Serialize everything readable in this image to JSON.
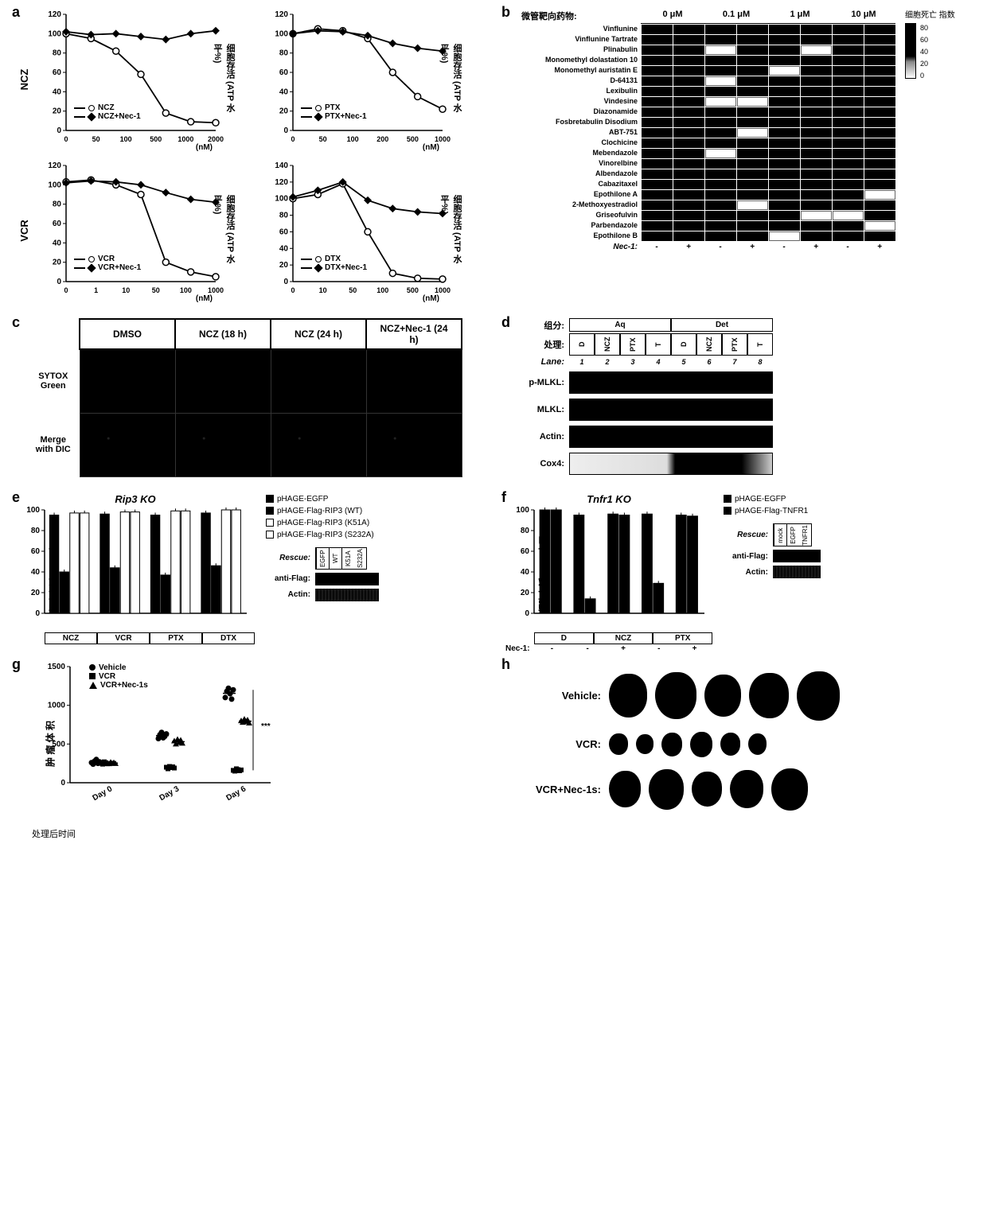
{
  "panel_a": {
    "ylabel": "细胞存活 (ATP 水平%)",
    "xunit": "(nM)",
    "ylim": [
      0,
      120
    ],
    "ytick_step": 20,
    "charts": [
      {
        "drug": "NCZ",
        "row_label": "NCZ",
        "xtick_labels": [
          "0",
          "50",
          "100",
          "500",
          "1000",
          "2000"
        ],
        "series": [
          {
            "name": "NCZ",
            "marker": "open",
            "y": [
              100,
              95,
              82,
              58,
              18,
              9,
              8
            ]
          },
          {
            "name": "NCZ+Nec-1",
            "marker": "closed",
            "y": [
              102,
              99,
              100,
              97,
              94,
              100,
              103
            ]
          }
        ]
      },
      {
        "drug": "PTX",
        "row_label": "PTX",
        "xtick_labels": [
          "0",
          "50",
          "100",
          "200",
          "500",
          "1000"
        ],
        "series": [
          {
            "name": "PTX",
            "marker": "open",
            "y": [
              100,
              105,
              103,
              95,
              60,
              35,
              22
            ]
          },
          {
            "name": "PTX+Nec-1",
            "marker": "closed",
            "y": [
              100,
              103,
              102,
              98,
              90,
              85,
              82
            ]
          }
        ]
      },
      {
        "drug": "VCR",
        "row_label": "VCR",
        "xtick_labels": [
          "0",
          "1",
          "10",
          "50",
          "100",
          "1000"
        ],
        "series": [
          {
            "name": "VCR",
            "marker": "open",
            "y": [
              103,
              105,
              100,
              90,
              20,
              10,
              5
            ]
          },
          {
            "name": "VCR+Nec-1",
            "marker": "closed",
            "y": [
              102,
              104,
              103,
              100,
              92,
              85,
              82
            ]
          }
        ]
      },
      {
        "drug": "DTX",
        "row_label": "DTX",
        "xtick_labels": [
          "0",
          "10",
          "50",
          "100",
          "500",
          "1000"
        ],
        "ylim": [
          0,
          140
        ],
        "series": [
          {
            "name": "DTX",
            "marker": "open",
            "y": [
              100,
              105,
              118,
              60,
              10,
              4,
              3
            ]
          },
          {
            "name": "DTX+Nec-1",
            "marker": "closed",
            "y": [
              102,
              110,
              120,
              98,
              88,
              84,
              82
            ]
          }
        ]
      }
    ]
  },
  "panel_b": {
    "title": "微管靶向药物:",
    "legend_title": "细胞死亡\n指数",
    "concentrations": [
      "0 μM",
      "0.1 μM",
      "1 μM",
      "10 μM"
    ],
    "nec_row_label": "Nec-1:",
    "nec_values": [
      "-",
      "+",
      "-",
      "+",
      "-",
      "+",
      "-",
      "+"
    ],
    "legend_ticks": [
      "80",
      "60",
      "40",
      "20",
      "0"
    ],
    "drugs": [
      "Vinflunine",
      "Vinflunine Tartrate",
      "Plinabulin",
      "Monomethyl dolastation 10",
      "Monomethyl auristatin E",
      "D-64131",
      "Lexibulin",
      "Vindesine",
      "Diazonamide",
      "Fosbretabulin Disodium",
      "ABT-751",
      "Clochicine",
      "Mebendazole",
      "Vinorelbine",
      "Albendazole",
      "Cabazitaxel",
      "Epothilone A",
      "2-Methoxyestradiol",
      "Griseofulvin",
      "Parbendazole",
      "Epothilone B"
    ],
    "cells": [
      [
        "hi",
        "hi",
        "hi",
        "hi",
        "hi",
        "hi",
        "hi",
        "hi"
      ],
      [
        "hi",
        "hi",
        "hi",
        "hi",
        "hi",
        "hi",
        "hi",
        "hi"
      ],
      [
        "hi",
        "hi",
        "lo",
        "hi",
        "hi",
        "lo",
        "hi",
        "hi"
      ],
      [
        "hi",
        "hi",
        "hi",
        "hi",
        "hi",
        "hi",
        "hi",
        "hi"
      ],
      [
        "hi",
        "hi",
        "hi",
        "hi",
        "lo",
        "hi",
        "hi",
        "hi"
      ],
      [
        "hi",
        "hi",
        "lo",
        "hi",
        "hi",
        "hi",
        "hi",
        "hi"
      ],
      [
        "hi",
        "hi",
        "hi",
        "hi",
        "hi",
        "hi",
        "hi",
        "hi"
      ],
      [
        "hi",
        "hi",
        "lo",
        "lo",
        "hi",
        "hi",
        "hi",
        "hi"
      ],
      [
        "hi",
        "hi",
        "hi",
        "hi",
        "hi",
        "hi",
        "hi",
        "hi"
      ],
      [
        "hi",
        "hi",
        "hi",
        "hi",
        "hi",
        "hi",
        "hi",
        "hi"
      ],
      [
        "hi",
        "hi",
        "hi",
        "lo",
        "hi",
        "hi",
        "hi",
        "hi"
      ],
      [
        "hi",
        "hi",
        "hi",
        "hi",
        "hi",
        "hi",
        "hi",
        "hi"
      ],
      [
        "hi",
        "hi",
        "lo",
        "hi",
        "hi",
        "hi",
        "hi",
        "hi"
      ],
      [
        "hi",
        "hi",
        "hi",
        "hi",
        "hi",
        "hi",
        "hi",
        "hi"
      ],
      [
        "hi",
        "hi",
        "hi",
        "hi",
        "hi",
        "hi",
        "hi",
        "hi"
      ],
      [
        "hi",
        "hi",
        "hi",
        "hi",
        "hi",
        "hi",
        "hi",
        "hi"
      ],
      [
        "hi",
        "hi",
        "hi",
        "hi",
        "hi",
        "hi",
        "hi",
        "lo"
      ],
      [
        "hi",
        "hi",
        "hi",
        "lo",
        "hi",
        "hi",
        "hi",
        "hi"
      ],
      [
        "hi",
        "hi",
        "hi",
        "hi",
        "hi",
        "lo",
        "lo",
        "hi"
      ],
      [
        "hi",
        "hi",
        "hi",
        "hi",
        "hi",
        "hi",
        "hi",
        "lo"
      ],
      [
        "hi",
        "hi",
        "hi",
        "hi",
        "lo",
        "hi",
        "hi",
        "hi"
      ]
    ]
  },
  "panel_c": {
    "conditions": [
      "DMSO",
      "NCZ (18 h)",
      "NCZ (24 h)",
      "NCZ+Nec-1 (24 h)"
    ],
    "row_labels": [
      "SYTOX\nGreen",
      "Merge\nwith DIC"
    ]
  },
  "panel_d": {
    "fraction_label": "组分:",
    "treatment_label": "处理:",
    "lane_label": "Lane:",
    "fractions": [
      "Aq",
      "Det"
    ],
    "treatments": [
      "D",
      "NCZ",
      "PTX",
      "T",
      "D",
      "NCZ",
      "PTX",
      "T"
    ],
    "lanes": [
      "1",
      "2",
      "3",
      "4",
      "5",
      "6",
      "7",
      "8"
    ],
    "blots": [
      "p-MLKL:",
      "MLKL:",
      "Actin:",
      "Cox4:"
    ]
  },
  "panel_e": {
    "title": "Rip3 KO",
    "ylabel": "细胞存活 (ATP 水平%)",
    "ylim": [
      0,
      100
    ],
    "ytick_step": 20,
    "groups": [
      "NCZ",
      "VCR",
      "PTX",
      "DTX"
    ],
    "legend": [
      "pHAGE-EGFP",
      "pHAGE-Flag-RIP3 (WT)",
      "pHAGE-Flag-RIP3 (K51A)",
      "pHAGE-Flag-RIP3 (S232A)"
    ],
    "values": [
      [
        95,
        40,
        97,
        97
      ],
      [
        96,
        44,
        98,
        98
      ],
      [
        95,
        37,
        99,
        99
      ],
      [
        97,
        46,
        100,
        100
      ]
    ],
    "fills": [
      "#000",
      "#000",
      "#fff",
      "#fff"
    ],
    "rescue_label": "Rescue:",
    "rescue_cols": [
      "EGFP",
      "WT",
      "K51A",
      "S232A"
    ],
    "blot_labels": [
      "anti-Flag:",
      "Actin:"
    ]
  },
  "panel_f": {
    "title": "Tnfr1 KO",
    "ylabel": "细胞存活 (ATP 水平%)",
    "ylim": [
      0,
      100
    ],
    "ytick_step": 20,
    "groups": [
      "D",
      "NCZ",
      "NCZ",
      "PTX",
      "PTX"
    ],
    "group_labels": [
      "D",
      "NCZ",
      "PTX"
    ],
    "nec_label": "Nec-1:",
    "nec_vals": [
      "-",
      "-",
      "+",
      "-",
      "+"
    ],
    "legend": [
      "pHAGE-EGFP",
      "pHAGE-Flag-TNFR1"
    ],
    "values": [
      [
        100,
        100
      ],
      [
        95,
        14
      ],
      [
        96,
        95
      ],
      [
        96,
        29
      ],
      [
        95,
        94
      ]
    ],
    "fills": [
      "#000",
      "#000"
    ],
    "rescue_label": "Rescue:",
    "rescue_cols": [
      "mock",
      "EGFP",
      "TNFR1"
    ],
    "blot_labels": [
      "anti-Flag:",
      "Actin:"
    ]
  },
  "panel_g": {
    "ylabel": "肿 瘤 体 积",
    "xlabel": "处理后时间",
    "ylim": [
      0,
      1500
    ],
    "ytick_step": 500,
    "xticks": [
      "Day 0",
      "Day 3",
      "Day 6"
    ],
    "legend": [
      {
        "name": "Vehicle",
        "marker": "circle"
      },
      {
        "name": "VCR",
        "marker": "square"
      },
      {
        "name": "VCR+Nec-1s",
        "marker": "triangle"
      }
    ],
    "data": {
      "Vehicle": [
        [
          260,
          240,
          280,
          300,
          250,
          270
        ],
        [
          570,
          620,
          650,
          580,
          600,
          630
        ],
        [
          1100,
          1180,
          1220,
          1150,
          1080,
          1200
        ]
      ],
      "VCR": [
        [
          250,
          260,
          240,
          270,
          255,
          245
        ],
        [
          200,
          180,
          210,
          195,
          205,
          190
        ],
        [
          160,
          150,
          180,
          170,
          155,
          165
        ]
      ],
      "VCR+Nec-1s": [
        [
          255,
          245,
          265,
          250,
          260,
          248
        ],
        [
          540,
          500,
          560,
          520,
          550,
          510
        ],
        [
          800,
          780,
          820,
          790,
          810,
          770
        ]
      ]
    },
    "sig": "***"
  },
  "panel_h": {
    "rows": [
      {
        "label": "Vehicle:",
        "sizes": [
          48,
          52,
          46,
          50,
          54
        ]
      },
      {
        "label": "VCR:",
        "sizes": [
          24,
          22,
          26,
          28,
          25,
          23
        ]
      },
      {
        "label": "VCR+Nec-1s:",
        "sizes": [
          40,
          44,
          38,
          42,
          46
        ]
      }
    ]
  }
}
